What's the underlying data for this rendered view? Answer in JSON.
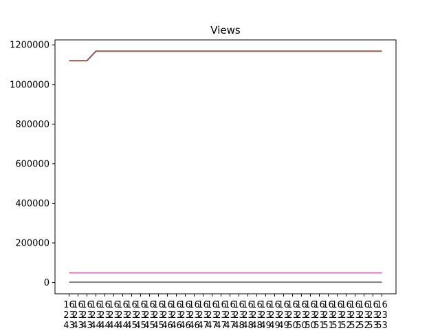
{
  "chart_data": {
    "type": "line",
    "title": "Views",
    "xlabel": "",
    "ylabel": "",
    "ylim": [
      -57000,
      1225000
    ],
    "grid": false,
    "yticks": [
      0,
      200000,
      400000,
      600000,
      800000,
      1000000,
      1200000
    ],
    "ytick_labels": [
      "0",
      "200000",
      "400000",
      "600000",
      "800000",
      "1000000",
      "1200000"
    ],
    "xtick_labels": [
      [
        "16",
        "23",
        "43"
      ],
      [
        "16",
        "23",
        "43"
      ],
      [
        "16",
        "23",
        "43"
      ],
      [
        "16",
        "23",
        "44"
      ],
      [
        "16",
        "23",
        "44"
      ],
      [
        "16",
        "23",
        "44"
      ],
      [
        "16",
        "23",
        "44"
      ],
      [
        "16",
        "23",
        "45"
      ],
      [
        "16",
        "23",
        "45"
      ],
      [
        "16",
        "23",
        "45"
      ],
      [
        "16",
        "23",
        "45"
      ],
      [
        "16",
        "23",
        "46"
      ],
      [
        "16",
        "23",
        "46"
      ],
      [
        "16",
        "23",
        "46"
      ],
      [
        "16",
        "23",
        "46"
      ],
      [
        "16",
        "23",
        "47"
      ],
      [
        "16",
        "23",
        "47"
      ],
      [
        "16",
        "23",
        "47"
      ],
      [
        "16",
        "23",
        "47"
      ],
      [
        "16",
        "23",
        "48"
      ],
      [
        "16",
        "23",
        "48"
      ],
      [
        "16",
        "23",
        "48"
      ],
      [
        "16",
        "23",
        "49"
      ],
      [
        "16",
        "23",
        "49"
      ],
      [
        "16",
        "23",
        "49"
      ],
      [
        "16",
        "23",
        "50"
      ],
      [
        "16",
        "23",
        "50"
      ],
      [
        "16",
        "23",
        "50"
      ],
      [
        "16",
        "23",
        "51"
      ],
      [
        "16",
        "23",
        "51"
      ],
      [
        "16",
        "23",
        "51"
      ],
      [
        "16",
        "23",
        "52"
      ],
      [
        "16",
        "23",
        "52"
      ],
      [
        "16",
        "23",
        "52"
      ],
      [
        "16",
        "23",
        "53"
      ],
      [
        "16",
        "23",
        "53"
      ]
    ],
    "x": [
      0,
      1,
      2,
      3,
      4,
      5,
      6,
      7,
      8,
      9,
      10,
      11,
      12,
      13,
      14,
      15,
      16,
      17,
      18,
      19,
      20,
      21,
      22,
      23,
      24,
      25,
      26,
      27,
      28,
      29,
      30,
      31,
      32,
      33,
      34,
      35
    ],
    "series": [
      {
        "color": "#8c564b",
        "values": [
          1120000,
          1120000,
          1120000,
          1168000,
          1168000,
          1168000,
          1168000,
          1168000,
          1168000,
          1168000,
          1168000,
          1168000,
          1168000,
          1168000,
          1168000,
          1168000,
          1168000,
          1168000,
          1168000,
          1168000,
          1168000,
          1168000,
          1168000,
          1168000,
          1168000,
          1168000,
          1168000,
          1168000,
          1168000,
          1168000,
          1168000,
          1168000,
          1168000,
          1168000,
          1168000,
          1168000
        ]
      },
      {
        "color": "#e377c2",
        "values": [
          49000,
          49000,
          49000,
          49000,
          49000,
          49000,
          49000,
          49000,
          49000,
          49000,
          49000,
          49000,
          49000,
          49000,
          49000,
          49000,
          49000,
          49000,
          49000,
          49000,
          49000,
          49000,
          49000,
          49000,
          49000,
          49000,
          49000,
          49000,
          49000,
          49000,
          49000,
          49000,
          49000,
          49000,
          49000,
          49000
        ]
      },
      {
        "color": "#7f7f7f",
        "values": [
          1500,
          1500,
          1500,
          1500,
          1500,
          1500,
          1500,
          1500,
          1500,
          1500,
          1500,
          1500,
          1500,
          1500,
          1500,
          1500,
          1500,
          1500,
          1500,
          1500,
          1500,
          1500,
          1500,
          1500,
          1500,
          1500,
          1500,
          1500,
          1500,
          1500,
          1500,
          1500,
          1500,
          1500,
          1500,
          1500
        ]
      }
    ]
  }
}
